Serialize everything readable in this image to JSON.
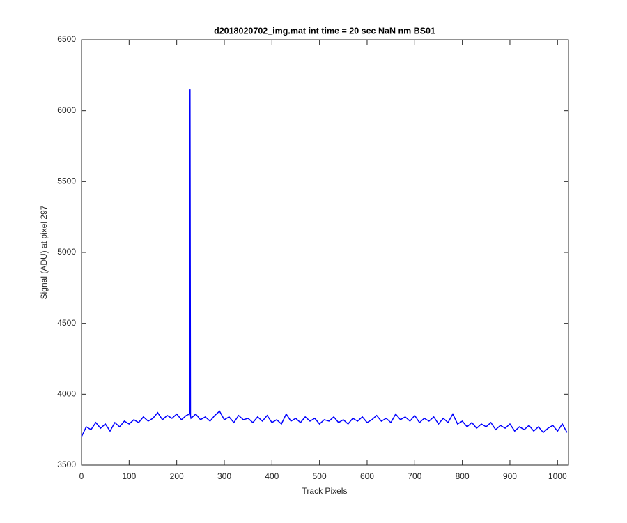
{
  "chart_data": {
    "type": "line",
    "title": "d2018020702_img.mat int time = 20 sec  NaN nm BS01",
    "x_label": "Track Pixels",
    "y_label": "Signal (ADU) at pixel 297",
    "color": "#0000ff",
    "x": [
      0,
      10,
      20,
      30,
      40,
      50,
      60,
      70,
      80,
      90,
      100,
      110,
      120,
      130,
      140,
      150,
      160,
      170,
      180,
      190,
      200,
      210,
      220,
      227,
      228,
      229,
      230,
      240,
      250,
      260,
      270,
      280,
      290,
      300,
      310,
      320,
      330,
      340,
      350,
      360,
      370,
      380,
      390,
      400,
      410,
      420,
      430,
      440,
      450,
      460,
      470,
      480,
      490,
      500,
      510,
      520,
      530,
      540,
      550,
      560,
      570,
      580,
      590,
      600,
      610,
      620,
      630,
      640,
      650,
      660,
      670,
      680,
      690,
      700,
      710,
      720,
      730,
      740,
      750,
      760,
      770,
      780,
      790,
      800,
      810,
      820,
      830,
      840,
      850,
      860,
      870,
      880,
      890,
      900,
      910,
      920,
      930,
      940,
      950,
      960,
      970,
      980,
      990,
      1000,
      1010,
      1020
    ],
    "values": [
      3700,
      3770,
      3750,
      3800,
      3760,
      3790,
      3740,
      3800,
      3770,
      3810,
      3790,
      3820,
      3800,
      3840,
      3810,
      3830,
      3870,
      3820,
      3850,
      3830,
      3860,
      3820,
      3850,
      3860,
      6150,
      3850,
      3830,
      3860,
      3820,
      3840,
      3810,
      3850,
      3880,
      3820,
      3840,
      3800,
      3850,
      3820,
      3830,
      3800,
      3840,
      3810,
      3850,
      3800,
      3820,
      3790,
      3860,
      3810,
      3830,
      3800,
      3840,
      3810,
      3830,
      3790,
      3820,
      3810,
      3840,
      3800,
      3820,
      3790,
      3830,
      3810,
      3840,
      3800,
      3820,
      3850,
      3810,
      3830,
      3800,
      3860,
      3820,
      3840,
      3810,
      3850,
      3800,
      3830,
      3810,
      3840,
      3790,
      3830,
      3800,
      3860,
      3790,
      3810,
      3770,
      3800,
      3760,
      3790,
      3770,
      3800,
      3750,
      3780,
      3760,
      3790,
      3740,
      3770,
      3750,
      3780,
      3740,
      3770,
      3730,
      3760,
      3780,
      3740,
      3790,
      3730
    ],
    "xlim": [
      0,
      1023
    ],
    "ylim": [
      3500,
      6500
    ],
    "xticks": [
      0,
      100,
      200,
      300,
      400,
      500,
      600,
      700,
      800,
      900,
      1000
    ],
    "yticks": [
      3500,
      4000,
      4500,
      5000,
      5500,
      6000,
      6500
    ]
  }
}
